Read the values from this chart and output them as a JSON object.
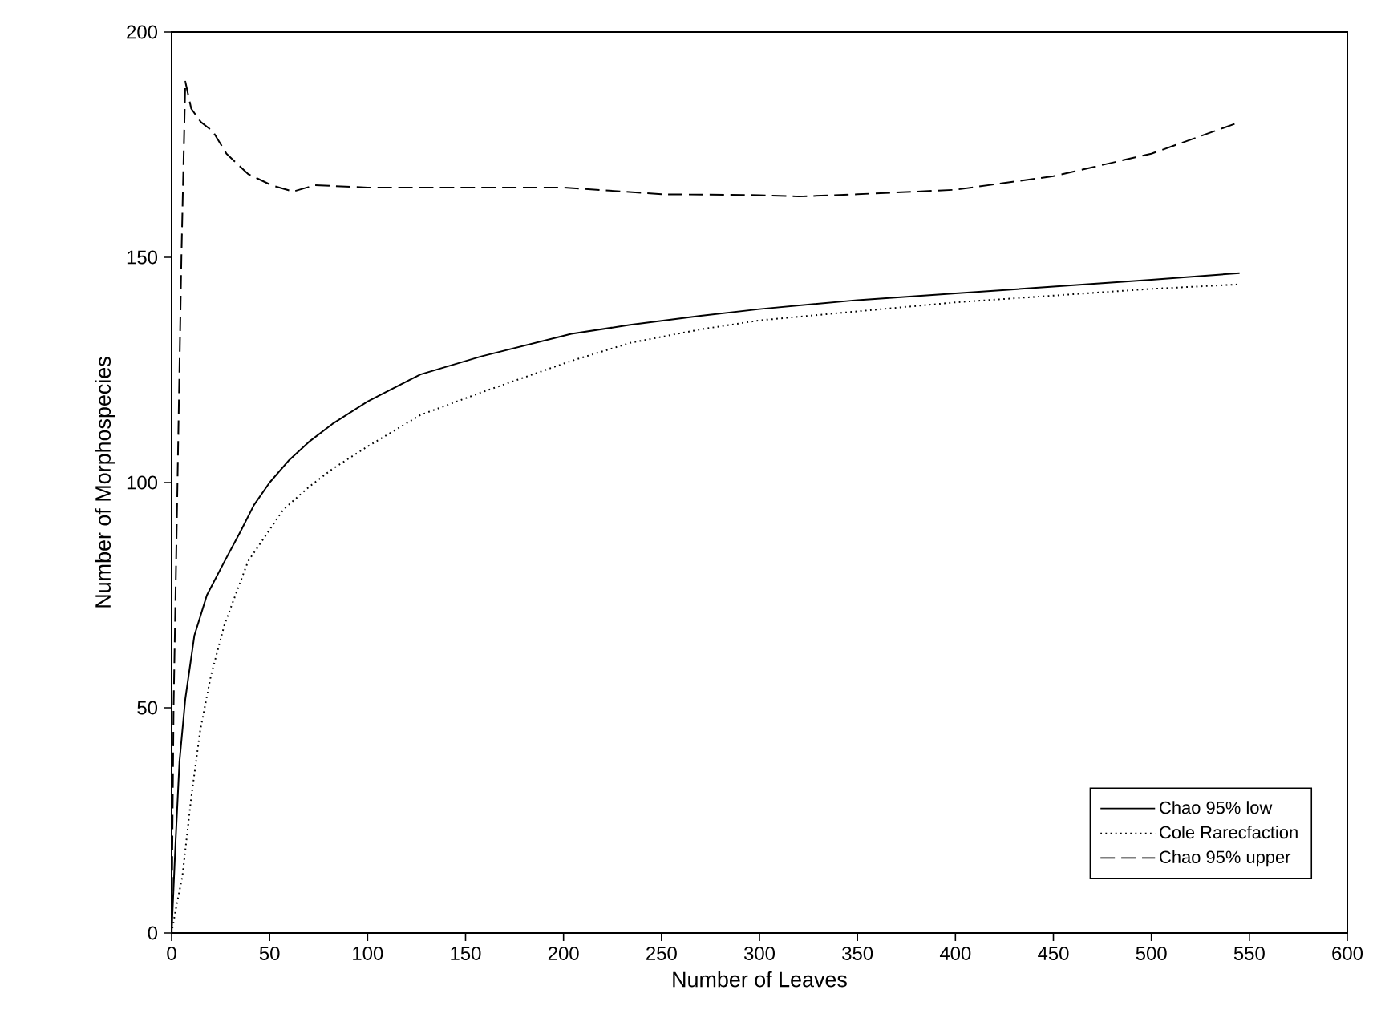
{
  "chart_data": {
    "type": "line",
    "xlabel": "Number of Leaves",
    "ylabel": "Number of Morphospecies",
    "xlim": [
      0,
      600
    ],
    "ylim": [
      0,
      200
    ],
    "xticks": [
      0,
      50,
      100,
      150,
      200,
      250,
      300,
      350,
      400,
      450,
      500,
      550,
      600
    ],
    "yticks": [
      0,
      50,
      100,
      150,
      200
    ],
    "grid": false,
    "legend": "bottom right",
    "marker": "none",
    "series": [
      {
        "name": "Chao 95% low",
        "color": "#000000",
        "line_style": "solid",
        "x": [
          0,
          1,
          2,
          4,
          7,
          11.6,
          18,
          27,
          35,
          42,
          50,
          60,
          70,
          82,
          100,
          127,
          158,
          204,
          234,
          270,
          300,
          350,
          400,
          450,
          500,
          545
        ],
        "values": [
          0,
          10,
          20,
          38,
          52,
          66,
          75,
          82.5,
          89,
          95,
          100,
          105,
          109,
          113,
          118,
          124,
          128,
          133,
          135,
          137,
          138.5,
          140.5,
          142,
          143.5,
          145,
          146.5
        ]
      },
      {
        "name": "Cole Rarecfaction",
        "color": "#000000",
        "line_style": "dotted",
        "x": [
          0,
          2,
          5.5,
          10,
          14.6,
          20,
          27,
          39,
          57,
          70,
          82,
          100,
          127,
          158,
          204,
          234,
          270,
          300,
          350,
          400,
          450,
          500,
          545
        ],
        "values": [
          0,
          5,
          12.6,
          30,
          45,
          57,
          68.5,
          82.5,
          94,
          99,
          103,
          108,
          115,
          120,
          127,
          131,
          134,
          136,
          138,
          140,
          141.5,
          143,
          144
        ]
      },
      {
        "name": "Chao 95% upper",
        "color": "#000000",
        "line_style": "dashed",
        "x": [
          0,
          1,
          3,
          5,
          7,
          10,
          15,
          21,
          28,
          39,
          51,
          62,
          73,
          100,
          150,
          200,
          250,
          300,
          320,
          350,
          400,
          450,
          500,
          545
        ],
        "values": [
          0,
          50,
          100,
          150,
          189,
          183,
          180,
          178,
          173,
          168.5,
          166,
          164.6,
          166,
          165.5,
          165.5,
          165.5,
          164,
          163.8,
          163.5,
          164,
          165,
          168,
          173,
          180
        ]
      }
    ]
  }
}
